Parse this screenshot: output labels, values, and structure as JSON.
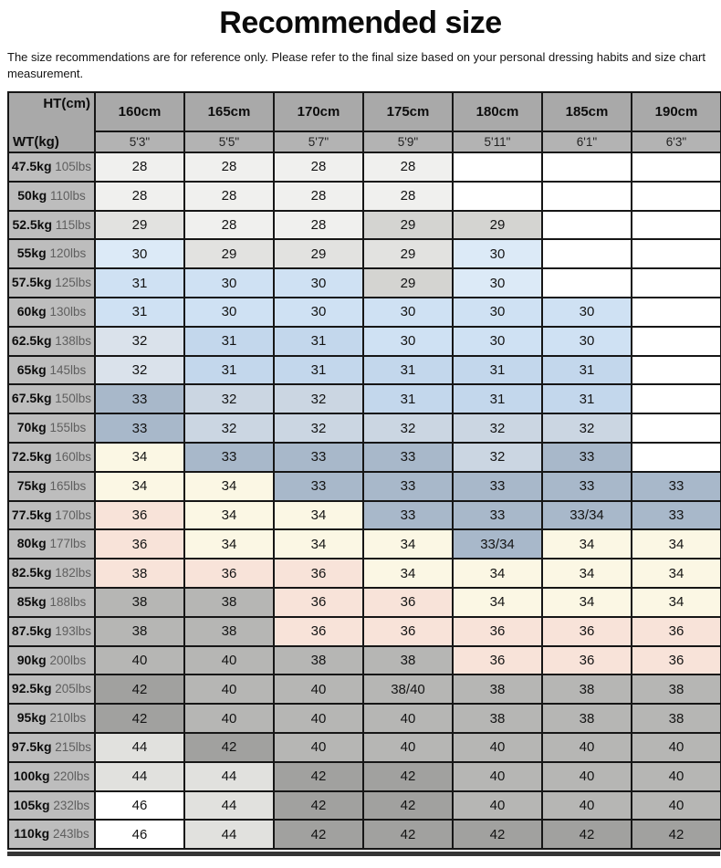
{
  "page": {
    "title": "Recommended size",
    "subtitle": "The size recommendations are for reference only. Please refer to the final size based on your personal dressing habits and size chart measurement."
  },
  "chart_data": {
    "type": "table",
    "title": "Recommended size",
    "corner": {
      "top_right": "HT(cm)",
      "bottom_left": "WT(kg)"
    },
    "columns": [
      {
        "cm": "160cm",
        "ft": "5'3\""
      },
      {
        "cm": "165cm",
        "ft": "5'5\""
      },
      {
        "cm": "170cm",
        "ft": "5'7\""
      },
      {
        "cm": "175cm",
        "ft": "5'9\""
      },
      {
        "cm": "180cm",
        "ft": "5'11\""
      },
      {
        "cm": "185cm",
        "ft": "6'1\""
      },
      {
        "cm": "190cm",
        "ft": "6'3\""
      }
    ],
    "palette": {
      "W": "#ffffff",
      "OW": "#f0f0ee",
      "LG1": "#e2e2e0",
      "LG2": "#d4d4d1",
      "LB": "#dceaf7",
      "LB2": "#cfe1f3",
      "MB": "#c3d7ec",
      "BG1": "#dae2eb",
      "BG2": "#cbd6e2",
      "ST": "#a8b8ca",
      "CR": "#fbf7e4",
      "PK": "#f8e3d9",
      "GR": "#b6b6b4",
      "DG": "#a1a19f",
      "VL": "#e1e1de"
    },
    "rows": [
      {
        "kg": "47.5kg",
        "lbs": "105lbs",
        "cells": [
          [
            "28",
            "OW"
          ],
          [
            "28",
            "OW"
          ],
          [
            "28",
            "OW"
          ],
          [
            "28",
            "OW"
          ],
          [
            "",
            "W"
          ],
          [
            "",
            "W"
          ],
          [
            "",
            "W"
          ]
        ]
      },
      {
        "kg": "50kg",
        "lbs": "110lbs",
        "cells": [
          [
            "28",
            "OW"
          ],
          [
            "28",
            "OW"
          ],
          [
            "28",
            "OW"
          ],
          [
            "28",
            "OW"
          ],
          [
            "",
            "W"
          ],
          [
            "",
            "W"
          ],
          [
            "",
            "W"
          ]
        ]
      },
      {
        "kg": "52.5kg",
        "lbs": "115lbs",
        "cells": [
          [
            "29",
            "LG1"
          ],
          [
            "28",
            "OW"
          ],
          [
            "28",
            "OW"
          ],
          [
            "29",
            "LG2"
          ],
          [
            "29",
            "LG2"
          ],
          [
            "",
            "W"
          ],
          [
            "",
            "W"
          ]
        ]
      },
      {
        "kg": "55kg",
        "lbs": "120lbs",
        "cells": [
          [
            "30",
            "LB"
          ],
          [
            "29",
            "LG1"
          ],
          [
            "29",
            "LG1"
          ],
          [
            "29",
            "LG1"
          ],
          [
            "30",
            "LB"
          ],
          [
            "",
            "W"
          ],
          [
            "",
            "W"
          ]
        ]
      },
      {
        "kg": "57.5kg",
        "lbs": "125lbs",
        "cells": [
          [
            "31",
            "LB2"
          ],
          [
            "30",
            "LB2"
          ],
          [
            "30",
            "LB2"
          ],
          [
            "29",
            "LG2"
          ],
          [
            "30",
            "LB"
          ],
          [
            "",
            "W"
          ],
          [
            "",
            "W"
          ]
        ]
      },
      {
        "kg": "60kg",
        "lbs": "130lbs",
        "cells": [
          [
            "31",
            "LB2"
          ],
          [
            "30",
            "LB2"
          ],
          [
            "30",
            "LB2"
          ],
          [
            "30",
            "LB2"
          ],
          [
            "30",
            "LB2"
          ],
          [
            "30",
            "LB2"
          ],
          [
            "",
            "W"
          ]
        ]
      },
      {
        "kg": "62.5kg",
        "lbs": "138lbs",
        "cells": [
          [
            "32",
            "BG1"
          ],
          [
            "31",
            "MB"
          ],
          [
            "31",
            "MB"
          ],
          [
            "30",
            "LB2"
          ],
          [
            "30",
            "LB2"
          ],
          [
            "30",
            "LB2"
          ],
          [
            "",
            "W"
          ]
        ]
      },
      {
        "kg": "65kg",
        "lbs": "145lbs",
        "cells": [
          [
            "32",
            "BG1"
          ],
          [
            "31",
            "MB"
          ],
          [
            "31",
            "MB"
          ],
          [
            "31",
            "MB"
          ],
          [
            "31",
            "MB"
          ],
          [
            "31",
            "MB"
          ],
          [
            "",
            "W"
          ]
        ]
      },
      {
        "kg": "67.5kg",
        "lbs": "150lbs",
        "cells": [
          [
            "33",
            "ST"
          ],
          [
            "32",
            "BG2"
          ],
          [
            "32",
            "BG2"
          ],
          [
            "31",
            "MB"
          ],
          [
            "31",
            "MB"
          ],
          [
            "31",
            "MB"
          ],
          [
            "",
            "W"
          ]
        ]
      },
      {
        "kg": "70kg",
        "lbs": "155lbs",
        "cells": [
          [
            "33",
            "ST"
          ],
          [
            "32",
            "BG2"
          ],
          [
            "32",
            "BG2"
          ],
          [
            "32",
            "BG2"
          ],
          [
            "32",
            "BG2"
          ],
          [
            "32",
            "BG2"
          ],
          [
            "",
            "W"
          ]
        ]
      },
      {
        "kg": "72.5kg",
        "lbs": "160lbs",
        "cells": [
          [
            "34",
            "CR"
          ],
          [
            "33",
            "ST"
          ],
          [
            "33",
            "ST"
          ],
          [
            "33",
            "ST"
          ],
          [
            "32",
            "BG2"
          ],
          [
            "33",
            "ST"
          ],
          [
            "",
            "W"
          ]
        ]
      },
      {
        "kg": "75kg",
        "lbs": "165lbs",
        "cells": [
          [
            "34",
            "CR"
          ],
          [
            "34",
            "CR"
          ],
          [
            "33",
            "ST"
          ],
          [
            "33",
            "ST"
          ],
          [
            "33",
            "ST"
          ],
          [
            "33",
            "ST"
          ],
          [
            "33",
            "ST"
          ]
        ]
      },
      {
        "kg": "77.5kg",
        "lbs": "170lbs",
        "cells": [
          [
            "36",
            "PK"
          ],
          [
            "34",
            "CR"
          ],
          [
            "34",
            "CR"
          ],
          [
            "33",
            "ST"
          ],
          [
            "33",
            "ST"
          ],
          [
            "33/34",
            "ST"
          ],
          [
            "33",
            "ST"
          ]
        ]
      },
      {
        "kg": "80kg",
        "lbs": "177lbs",
        "cells": [
          [
            "36",
            "PK"
          ],
          [
            "34",
            "CR"
          ],
          [
            "34",
            "CR"
          ],
          [
            "34",
            "CR"
          ],
          [
            "33/34",
            "ST"
          ],
          [
            "34",
            "CR"
          ],
          [
            "34",
            "CR"
          ]
        ]
      },
      {
        "kg": "82.5kg",
        "lbs": "182lbs",
        "cells": [
          [
            "38",
            "PK"
          ],
          [
            "36",
            "PK"
          ],
          [
            "36",
            "PK"
          ],
          [
            "34",
            "CR"
          ],
          [
            "34",
            "CR"
          ],
          [
            "34",
            "CR"
          ],
          [
            "34",
            "CR"
          ]
        ]
      },
      {
        "kg": "85kg",
        "lbs": "188lbs",
        "cells": [
          [
            "38",
            "GR"
          ],
          [
            "38",
            "GR"
          ],
          [
            "36",
            "PK"
          ],
          [
            "36",
            "PK"
          ],
          [
            "34",
            "CR"
          ],
          [
            "34",
            "CR"
          ],
          [
            "34",
            "CR"
          ]
        ]
      },
      {
        "kg": "87.5kg",
        "lbs": "193lbs",
        "cells": [
          [
            "38",
            "GR"
          ],
          [
            "38",
            "GR"
          ],
          [
            "36",
            "PK"
          ],
          [
            "36",
            "PK"
          ],
          [
            "36",
            "PK"
          ],
          [
            "36",
            "PK"
          ],
          [
            "36",
            "PK"
          ]
        ]
      },
      {
        "kg": "90kg",
        "lbs": "200lbs",
        "cells": [
          [
            "40",
            "GR"
          ],
          [
            "40",
            "GR"
          ],
          [
            "38",
            "GR"
          ],
          [
            "38",
            "GR"
          ],
          [
            "36",
            "PK"
          ],
          [
            "36",
            "PK"
          ],
          [
            "36",
            "PK"
          ]
        ]
      },
      {
        "kg": "92.5kg",
        "lbs": "205lbs",
        "cells": [
          [
            "42",
            "DG"
          ],
          [
            "40",
            "GR"
          ],
          [
            "40",
            "GR"
          ],
          [
            "38/40",
            "GR"
          ],
          [
            "38",
            "GR"
          ],
          [
            "38",
            "GR"
          ],
          [
            "38",
            "GR"
          ]
        ]
      },
      {
        "kg": "95kg",
        "lbs": "210lbs",
        "cells": [
          [
            "42",
            "DG"
          ],
          [
            "40",
            "GR"
          ],
          [
            "40",
            "GR"
          ],
          [
            "40",
            "GR"
          ],
          [
            "38",
            "GR"
          ],
          [
            "38",
            "GR"
          ],
          [
            "38",
            "GR"
          ]
        ]
      },
      {
        "kg": "97.5kg",
        "lbs": "215lbs",
        "cells": [
          [
            "44",
            "VL"
          ],
          [
            "42",
            "DG"
          ],
          [
            "40",
            "GR"
          ],
          [
            "40",
            "GR"
          ],
          [
            "40",
            "GR"
          ],
          [
            "40",
            "GR"
          ],
          [
            "40",
            "GR"
          ]
        ]
      },
      {
        "kg": "100kg",
        "lbs": "220lbs",
        "cells": [
          [
            "44",
            "VL"
          ],
          [
            "44",
            "VL"
          ],
          [
            "42",
            "DG"
          ],
          [
            "42",
            "DG"
          ],
          [
            "40",
            "GR"
          ],
          [
            "40",
            "GR"
          ],
          [
            "40",
            "GR"
          ]
        ]
      },
      {
        "kg": "105kg",
        "lbs": "232lbs",
        "cells": [
          [
            "46",
            "W"
          ],
          [
            "44",
            "VL"
          ],
          [
            "42",
            "DG"
          ],
          [
            "42",
            "DG"
          ],
          [
            "40",
            "GR"
          ],
          [
            "40",
            "GR"
          ],
          [
            "40",
            "GR"
          ]
        ]
      },
      {
        "kg": "110kg",
        "lbs": "243lbs",
        "cells": [
          [
            "46",
            "W"
          ],
          [
            "44",
            "VL"
          ],
          [
            "42",
            "DG"
          ],
          [
            "42",
            "DG"
          ],
          [
            "42",
            "DG"
          ],
          [
            "42",
            "DG"
          ],
          [
            "42",
            "DG"
          ]
        ]
      }
    ]
  }
}
